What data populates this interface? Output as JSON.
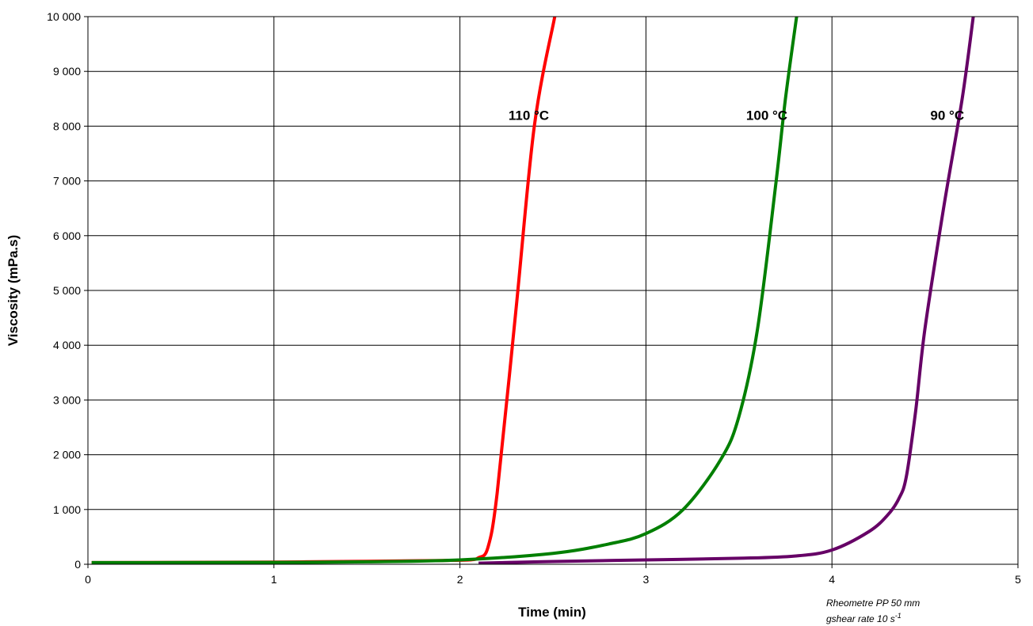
{
  "chart_data": {
    "type": "line",
    "xlabel": "Time (min)",
    "ylabel": "Viscosity (mPa.s)",
    "xlim": [
      0,
      5
    ],
    "ylim": [
      0,
      10000
    ],
    "x_ticks": [
      0,
      1,
      2,
      3,
      4,
      5
    ],
    "x_tick_labels": [
      "0",
      "1",
      "2",
      "3",
      "4",
      "5"
    ],
    "y_ticks": [
      0,
      1000,
      2000,
      3000,
      4000,
      5000,
      6000,
      7000,
      8000,
      9000,
      10000
    ],
    "y_tick_labels": [
      "0",
      "1 000",
      "2 000",
      "3 000",
      "4 000",
      "5 000",
      "6 000",
      "7 000",
      "8 000",
      "9 000",
      "10 000"
    ],
    "grid": true,
    "legend": "none",
    "series": [
      {
        "name": "110 °C",
        "color": "#ff0000",
        "points": [
          [
            0.02,
            30
          ],
          [
            0.5,
            35
          ],
          [
            1.0,
            40
          ],
          [
            1.5,
            55
          ],
          [
            1.9,
            70
          ],
          [
            2.05,
            80
          ],
          [
            2.1,
            120
          ],
          [
            2.15,
            300
          ],
          [
            2.2,
            1300
          ],
          [
            2.3,
            4600
          ],
          [
            2.4,
            8000
          ],
          [
            2.51,
            10000
          ]
        ]
      },
      {
        "name": "100 °C",
        "color": "#007f00",
        "points": [
          [
            0.02,
            30
          ],
          [
            0.5,
            32
          ],
          [
            1.0,
            35
          ],
          [
            1.5,
            45
          ],
          [
            2.0,
            80
          ],
          [
            2.5,
            200
          ],
          [
            2.8,
            370
          ],
          [
            3.0,
            560
          ],
          [
            3.2,
            1000
          ],
          [
            3.4,
            1900
          ],
          [
            3.5,
            2700
          ],
          [
            3.6,
            4300
          ],
          [
            3.7,
            7000
          ],
          [
            3.75,
            8500
          ],
          [
            3.81,
            10000
          ]
        ]
      },
      {
        "name": "90 °C",
        "color": "#660066",
        "points": [
          [
            2.1,
            20
          ],
          [
            2.5,
            50
          ],
          [
            3.0,
            80
          ],
          [
            3.5,
            110
          ],
          [
            3.8,
            150
          ],
          [
            4.0,
            260
          ],
          [
            4.2,
            600
          ],
          [
            4.3,
            900
          ],
          [
            4.36,
            1200
          ],
          [
            4.4,
            1600
          ],
          [
            4.45,
            2800
          ],
          [
            4.5,
            4300
          ],
          [
            4.6,
            6500
          ],
          [
            4.7,
            8500
          ],
          [
            4.76,
            10000
          ]
        ]
      }
    ],
    "labels": [
      {
        "text": "110 °C",
        "x": 2.37,
        "y": 8200
      },
      {
        "text": "100 °C",
        "x": 3.65,
        "y": 8200
      },
      {
        "text": "90 °C",
        "x": 4.62,
        "y": 8200
      }
    ],
    "annotation": {
      "line1": "Rheometre PP 50 mm",
      "line2": "gshear rate 10 s",
      "superscript": "-1"
    }
  }
}
